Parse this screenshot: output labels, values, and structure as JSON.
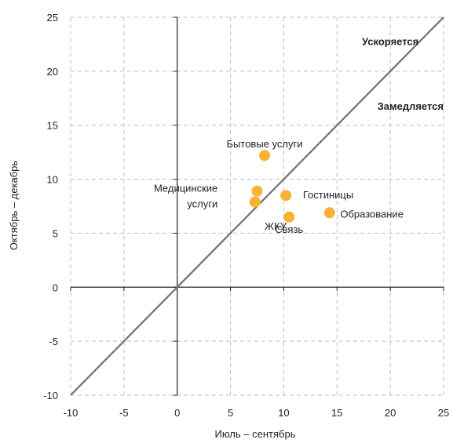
{
  "chart_data": {
    "type": "scatter",
    "xlabel": "Июль – сентябрь",
    "ylabel": "Октябрь – декабрь",
    "xlim": [
      -10,
      25
    ],
    "ylim": [
      -10,
      25
    ],
    "xticks": [
      -10,
      -5,
      0,
      5,
      10,
      15,
      20,
      25
    ],
    "yticks": [
      -10,
      -5,
      0,
      5,
      10,
      15,
      20,
      25
    ],
    "grid": true,
    "colors": {
      "point": "#f9b233",
      "diagonal": "#707070",
      "grid": "#bfbfbf",
      "axis": "#222222"
    },
    "reference_line": {
      "from": [
        -10,
        -10
      ],
      "to": [
        25,
        25
      ]
    },
    "region_labels": [
      {
        "text": "Ускоряется",
        "x": 20,
        "y": 22.8
      },
      {
        "text": "Замедляется",
        "x": 25,
        "y": 16.8
      }
    ],
    "points": [
      {
        "label_lines": [
          "Бытовые услуги"
        ],
        "x": 8.2,
        "y": 12.2,
        "lx": 8.2,
        "ly": 13.3
      },
      {
        "label_lines": [
          "Медицинские",
          "услуги"
        ],
        "x": 7.5,
        "y": 8.9,
        "lx": 3.8,
        "ly": 9.2
      },
      {
        "label_lines": [
          "ЖКУ"
        ],
        "x": 7.3,
        "y": 7.9,
        "lx": 8.2,
        "ly": 5.7
      },
      {
        "label_lines": [
          "Гостиницы"
        ],
        "x": 10.2,
        "y": 8.5,
        "lx": 11.8,
        "ly": 8.6
      },
      {
        "label_lines": [
          "Связь"
        ],
        "x": 10.5,
        "y": 6.5,
        "lx": 10.5,
        "ly": 5.4
      },
      {
        "label_lines": [
          "Образование"
        ],
        "x": 14.3,
        "y": 6.9,
        "lx": 15.3,
        "ly": 6.8
      }
    ]
  }
}
